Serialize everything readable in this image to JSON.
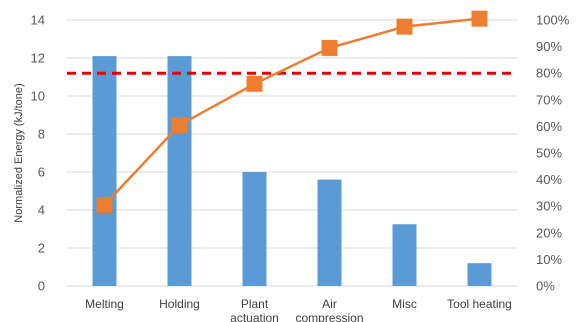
{
  "chart_data": {
    "type": "bar",
    "ylabel": "Normalized Energy (kJ/tone)",
    "ylim": [
      0,
      14
    ],
    "y_ticks": [
      "0",
      "2",
      "4",
      "6",
      "8",
      "10",
      "12",
      "14"
    ],
    "y2lim": [
      0,
      100
    ],
    "y2_ticks": [
      "0%",
      "10%",
      "20%",
      "30%",
      "40%",
      "50%",
      "60%",
      "70%",
      "80%",
      "90%",
      "100%"
    ],
    "categories": [
      "Melting",
      "Holding",
      "Plant actuation",
      "Air compression",
      "Misc",
      "Tool heating"
    ],
    "category_lines": [
      [
        "Melting"
      ],
      [
        "Holding"
      ],
      [
        "Plant",
        "actuation"
      ],
      [
        "Air",
        "compression"
      ],
      [
        "Misc"
      ],
      [
        "Tool heating"
      ]
    ],
    "series": [
      {
        "type": "bar",
        "axis": "left",
        "values": [
          12.1,
          12.1,
          6.0,
          5.6,
          3.25,
          1.2
        ],
        "color": "#5b9bd5"
      },
      {
        "type": "line",
        "axis": "right",
        "values": [
          30.5,
          60.5,
          76.0,
          89.5,
          97.5,
          100.5
        ],
        "color": "#ed7d31",
        "marker": "square"
      }
    ],
    "reference_line": {
      "axis": "right",
      "value": 80,
      "color": "#e00000",
      "style": "dashed"
    },
    "grid": true,
    "legend": "none"
  }
}
